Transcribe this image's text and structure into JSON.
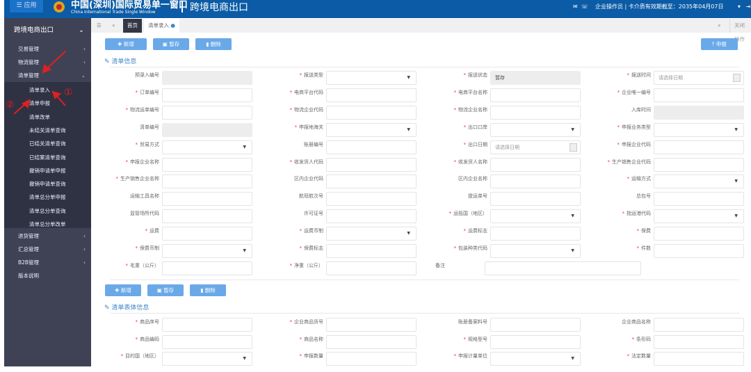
{
  "header": {
    "app_label": "☰ 应用",
    "brand_cn": "中国(深圳)国际贸易单一窗口",
    "brand_en": "China International Trade Single Window",
    "system_title": "跨境电商出口",
    "operator": "企业操作员",
    "card_validity": "卡介质有效期截至：2035年04月07日"
  },
  "sidebar": {
    "title": "跨境电商出口",
    "items": [
      {
        "label": "交易管理"
      },
      {
        "label": "物流管理"
      },
      {
        "label": "清单管理",
        "expanded": true
      }
    ],
    "sub_items": [
      {
        "label": "清单录入"
      },
      {
        "label": "清单申报"
      },
      {
        "label": "清单改单"
      },
      {
        "label": "未结关清单查询"
      },
      {
        "label": "已结关清单查询"
      },
      {
        "label": "已结案清单查询"
      },
      {
        "label": "撤销申请单申报"
      },
      {
        "label": "撤销申请单查询"
      },
      {
        "label": "清单总分单申报"
      },
      {
        "label": "清单总分单查询"
      },
      {
        "label": "清单总分单改单"
      }
    ],
    "bottom_items": [
      {
        "label": "退货管理",
        "chev": "‹"
      },
      {
        "label": "汇总管理",
        "chev": "‹"
      },
      {
        "label": "B2B管理",
        "chev": "‹"
      },
      {
        "label": "版本说明",
        "chev": ""
      }
    ]
  },
  "tabs": {
    "home": "首页",
    "active": "清单录入",
    "close_ops": "关闭操作"
  },
  "toolbar": {
    "add": "新增",
    "save": "暂存",
    "delete": "删除",
    "declare": "申报"
  },
  "annotations": {
    "one": "①",
    "two": "②"
  },
  "section1": {
    "title": "清单信息",
    "rows": [
      [
        {
          "label": "预录入编号",
          "type": "ro"
        },
        {
          "label": "报送类型",
          "req": true,
          "type": "select"
        },
        {
          "label": "报送状态",
          "req": true,
          "type": "ro",
          "value": "暂存"
        },
        {
          "label": "报送时间",
          "req": true,
          "type": "date",
          "placeholder": "请选择日期"
        }
      ],
      [
        {
          "label": "订单编号",
          "req": true
        },
        {
          "label": "电商平台代码",
          "req": true
        },
        {
          "label": "电商平台名称",
          "req": true
        },
        {
          "label": "企业唯一编号",
          "req": true
        }
      ],
      [
        {
          "label": "物流运单编号",
          "req": true
        },
        {
          "label": "物流企业代码",
          "req": true
        },
        {
          "label": "物流企业名称",
          "req": true
        },
        {
          "label": "入库时间",
          "type": "ro"
        }
      ],
      [
        {
          "label": "清单编号",
          "type": "ro"
        },
        {
          "label": "申报地海关",
          "req": true,
          "type": "select"
        },
        {
          "label": "出口口岸",
          "req": true,
          "type": "select"
        },
        {
          "label": "申报业务类型",
          "req": true,
          "type": "select"
        }
      ],
      [
        {
          "label": "贸易方式",
          "req": true,
          "type": "select"
        },
        {
          "label": "账册编号"
        },
        {
          "label": "出口日期",
          "req": true,
          "type": "date",
          "placeholder": "请选择日期"
        },
        {
          "label": "申报企业代码",
          "req": true
        }
      ],
      [
        {
          "label": "申报企业名称",
          "req": true
        },
        {
          "label": "收发货人代码",
          "req": true
        },
        {
          "label": "收发货人名称",
          "req": true
        },
        {
          "label": "生产销售企业代码",
          "req": true
        }
      ],
      [
        {
          "label": "生产销售企业名称",
          "req": true
        },
        {
          "label": "区内企业代码"
        },
        {
          "label": "区内企业名称"
        },
        {
          "label": "运输方式",
          "req": true,
          "type": "select"
        }
      ],
      [
        {
          "label": "运输工具名称"
        },
        {
          "label": "航班航次号"
        },
        {
          "label": "提运单号"
        },
        {
          "label": "总包号"
        }
      ],
      [
        {
          "label": "监管场所代码"
        },
        {
          "label": "许可证号"
        },
        {
          "label": "运抵国（地区）",
          "req": true,
          "type": "select"
        },
        {
          "label": "指运港代码",
          "req": true,
          "type": "select"
        }
      ],
      [
        {
          "label": "运费",
          "req": true
        },
        {
          "label": "运费币制",
          "req": true,
          "type": "select"
        },
        {
          "label": "运费标志",
          "req": true
        },
        {
          "label": "保费",
          "req": true
        }
      ],
      [
        {
          "label": "保费币制",
          "req": true,
          "type": "select"
        },
        {
          "label": "保费标志",
          "req": true
        },
        {
          "label": "包装种类代码",
          "req": true,
          "type": "select"
        },
        {
          "label": "件数",
          "req": true
        }
      ],
      [
        {
          "label": "毛重（公斤）",
          "req": true
        },
        {
          "label": "净重（公斤）",
          "req": true
        },
        {
          "label": "备注",
          "type": "wide"
        }
      ]
    ]
  },
  "section2": {
    "title": "清单表体信息",
    "rows": [
      [
        {
          "label": "商品序号",
          "req": true
        },
        {
          "label": "企业商品货号",
          "req": true
        },
        {
          "label": "账册备案料号"
        },
        {
          "label": "企业商品名称"
        }
      ],
      [
        {
          "label": "商品编码",
          "req": true
        },
        {
          "label": "商品名称",
          "req": true
        },
        {
          "label": "规格型号",
          "req": true
        },
        {
          "label": "条形码",
          "req": true
        }
      ],
      [
        {
          "label": "目的国（地区）",
          "req": true,
          "type": "select"
        },
        {
          "label": "申报数量",
          "req": true
        },
        {
          "label": "申报计量单位",
          "req": true,
          "type": "select"
        },
        {
          "label": "法定数量",
          "req": true
        }
      ]
    ]
  },
  "colors": {
    "header": "#0b5ba6",
    "sidebar": "#3f4254",
    "button": "#6aa9e8",
    "required": "#e33",
    "annotation": "#e02020"
  }
}
